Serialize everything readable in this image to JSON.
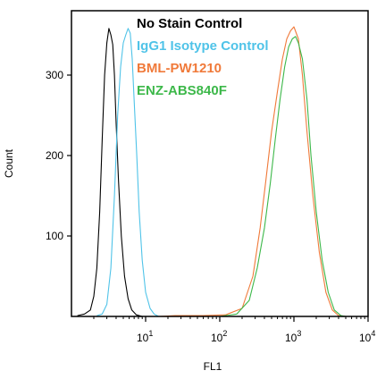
{
  "chart_data": {
    "type": "line",
    "xlabel": "FL1",
    "ylabel": "Count",
    "xscale": "log",
    "xlim": [
      1,
      10000
    ],
    "ylim": [
      0,
      380
    ],
    "y_ticks": [
      {
        "value": 100,
        "label": "100"
      },
      {
        "value": 200,
        "label": "200"
      },
      {
        "value": 300,
        "label": "300"
      }
    ],
    "x_ticks": [
      {
        "value": 10,
        "base": "10",
        "exp": "1"
      },
      {
        "value": 100,
        "base": "10",
        "exp": "2"
      },
      {
        "value": 1000,
        "base": "10",
        "exp": "3"
      },
      {
        "value": 10000,
        "base": "10",
        "exp": "4"
      }
    ],
    "legend_placement": "top-right",
    "series": [
      {
        "name": "No Stain Control",
        "color": "#000000",
        "points": [
          [
            1.2,
            1
          ],
          [
            1.5,
            3
          ],
          [
            1.8,
            8
          ],
          [
            2.0,
            25
          ],
          [
            2.2,
            60
          ],
          [
            2.4,
            130
          ],
          [
            2.6,
            220
          ],
          [
            2.8,
            300
          ],
          [
            3.0,
            340
          ],
          [
            3.2,
            358
          ],
          [
            3.4,
            350
          ],
          [
            3.6,
            338
          ],
          [
            3.8,
            300
          ],
          [
            4.0,
            240
          ],
          [
            4.3,
            170
          ],
          [
            4.7,
            100
          ],
          [
            5.2,
            50
          ],
          [
            5.8,
            22
          ],
          [
            6.5,
            8
          ],
          [
            7.5,
            2
          ],
          [
            9,
            0
          ]
        ]
      },
      {
        "name": "IgG1 Isotype Control",
        "color": "#4fc3e8",
        "points": [
          [
            2.2,
            1
          ],
          [
            2.6,
            3
          ],
          [
            3.0,
            15
          ],
          [
            3.4,
            60
          ],
          [
            3.8,
            150
          ],
          [
            4.2,
            250
          ],
          [
            4.6,
            310
          ],
          [
            5.0,
            340
          ],
          [
            5.4,
            350
          ],
          [
            5.8,
            358
          ],
          [
            6.2,
            352
          ],
          [
            6.6,
            320
          ],
          [
            7.0,
            270
          ],
          [
            7.6,
            200
          ],
          [
            8.2,
            130
          ],
          [
            9.0,
            70
          ],
          [
            10,
            30
          ],
          [
            11.5,
            10
          ],
          [
            13,
            3
          ],
          [
            15,
            0
          ]
        ]
      },
      {
        "name": "BML-PW1210",
        "color": "#f07a3a",
        "points": [
          [
            15,
            0
          ],
          [
            25,
            1
          ],
          [
            60,
            1
          ],
          [
            120,
            2
          ],
          [
            200,
            10
          ],
          [
            280,
            50
          ],
          [
            350,
            110
          ],
          [
            420,
            170
          ],
          [
            500,
            230
          ],
          [
            600,
            280
          ],
          [
            700,
            320
          ],
          [
            800,
            345
          ],
          [
            900,
            355
          ],
          [
            1000,
            360
          ],
          [
            1150,
            345
          ],
          [
            1300,
            300
          ],
          [
            1500,
            230
          ],
          [
            1800,
            150
          ],
          [
            2200,
            80
          ],
          [
            2700,
            30
          ],
          [
            3300,
            8
          ],
          [
            4000,
            1
          ],
          [
            5000,
            0
          ]
        ]
      },
      {
        "name": "ENZ-ABS840F",
        "color": "#3db84a",
        "points": [
          [
            100,
            0
          ],
          [
            170,
            3
          ],
          [
            250,
            20
          ],
          [
            320,
            60
          ],
          [
            400,
            110
          ],
          [
            480,
            165
          ],
          [
            560,
            220
          ],
          [
            650,
            270
          ],
          [
            750,
            310
          ],
          [
            850,
            335
          ],
          [
            950,
            345
          ],
          [
            1050,
            348
          ],
          [
            1150,
            340
          ],
          [
            1300,
            320
          ],
          [
            1500,
            270
          ],
          [
            1700,
            200
          ],
          [
            2000,
            130
          ],
          [
            2400,
            70
          ],
          [
            2900,
            30
          ],
          [
            3500,
            8
          ],
          [
            4300,
            1
          ],
          [
            5000,
            0
          ]
        ]
      }
    ]
  }
}
